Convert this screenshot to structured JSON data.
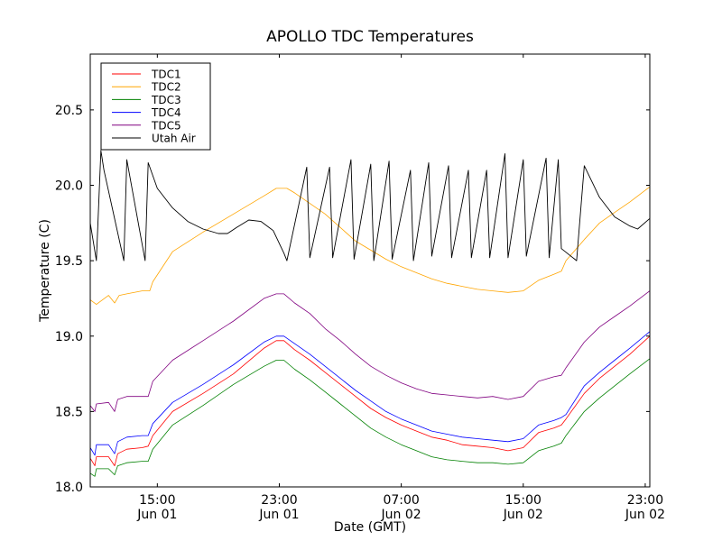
{
  "chart_data": {
    "type": "line",
    "title": "APOLLO TDC Temperatures",
    "xlabel": "Date (GMT)",
    "ylabel": "Temperature (C)",
    "x_unit": "hours since Jun 01 00:00 GMT",
    "xlim": [
      10.6,
      47.3
    ],
    "ylim": [
      18.0,
      20.87
    ],
    "grid": false,
    "legend_position": "top-left",
    "yticks": [
      {
        "value": 18.0,
        "label": "18.0"
      },
      {
        "value": 18.5,
        "label": "18.5"
      },
      {
        "value": 19.0,
        "label": "19.0"
      },
      {
        "value": 19.5,
        "label": "19.5"
      },
      {
        "value": 20.0,
        "label": "20.0"
      },
      {
        "value": 20.5,
        "label": "20.5"
      }
    ],
    "xticks": [
      {
        "value": 15,
        "time": "15:00",
        "date": "Jun 01"
      },
      {
        "value": 23,
        "time": "23:00",
        "date": "Jun 01"
      },
      {
        "value": 31,
        "time": "07:00",
        "date": "Jun 02"
      },
      {
        "value": 39,
        "time": "15:00",
        "date": "Jun 02"
      },
      {
        "value": 47,
        "time": "23:00",
        "date": "Jun 02"
      }
    ],
    "series": [
      {
        "name": "TDC1",
        "color": "#ff0000",
        "x": [
          10.6,
          10.9,
          11.0,
          11.8,
          12.2,
          12.4,
          13.0,
          14.0,
          14.4,
          14.7,
          16.0,
          18.0,
          20.0,
          22.0,
          22.8,
          23.3,
          24.0,
          25.0,
          26.0,
          27.0,
          28.0,
          29.0,
          30.0,
          31.0,
          32.0,
          33.0,
          34.0,
          35.0,
          36.0,
          37.0,
          38.0,
          39.0,
          40.0,
          41.0,
          41.5,
          41.8,
          43.0,
          44.0,
          45.0,
          46.0,
          47.3
        ],
        "y": [
          18.19,
          18.14,
          18.2,
          18.2,
          18.14,
          18.22,
          18.25,
          18.26,
          18.27,
          18.34,
          18.5,
          18.62,
          18.75,
          18.92,
          18.97,
          18.97,
          18.91,
          18.84,
          18.76,
          18.68,
          18.6,
          18.52,
          18.46,
          18.41,
          18.37,
          18.33,
          18.31,
          18.28,
          18.27,
          18.26,
          18.24,
          18.26,
          18.36,
          18.39,
          18.41,
          18.45,
          18.62,
          18.72,
          18.8,
          18.88,
          19.0
        ]
      },
      {
        "name": "TDC2",
        "color": "#ffa500",
        "x": [
          10.6,
          11.0,
          11.8,
          12.2,
          12.5,
          13.0,
          14.0,
          14.5,
          14.7,
          16.0,
          18.0,
          20.0,
          22.0,
          22.8,
          23.5,
          24.0,
          25.0,
          26.0,
          27.0,
          28.0,
          29.0,
          30.0,
          31.0,
          32.0,
          33.0,
          34.0,
          35.0,
          36.0,
          37.0,
          38.0,
          39.0,
          40.0,
          41.0,
          41.5,
          41.8,
          43.0,
          44.0,
          45.0,
          46.0,
          47.3
        ],
        "y": [
          19.24,
          19.21,
          19.27,
          19.22,
          19.27,
          19.28,
          19.3,
          19.3,
          19.36,
          19.56,
          19.69,
          19.81,
          19.93,
          19.98,
          19.98,
          19.95,
          19.88,
          19.81,
          19.72,
          19.63,
          19.57,
          19.51,
          19.46,
          19.42,
          19.38,
          19.35,
          19.33,
          19.31,
          19.3,
          19.29,
          19.3,
          19.37,
          19.41,
          19.43,
          19.5,
          19.64,
          19.75,
          19.82,
          19.89,
          19.99
        ]
      },
      {
        "name": "TDC3",
        "color": "#008000",
        "x": [
          10.6,
          10.9,
          11.0,
          11.8,
          12.2,
          12.4,
          13.0,
          14.0,
          14.4,
          14.7,
          16.0,
          18.0,
          20.0,
          22.0,
          22.8,
          23.3,
          24.0,
          25.0,
          26.0,
          27.0,
          28.0,
          29.0,
          30.0,
          31.0,
          32.0,
          33.0,
          34.0,
          35.0,
          36.0,
          37.0,
          38.0,
          39.0,
          40.0,
          41.0,
          41.5,
          41.8,
          43.0,
          44.0,
          45.0,
          46.0,
          47.3
        ],
        "y": [
          18.09,
          18.07,
          18.12,
          18.12,
          18.08,
          18.14,
          18.16,
          18.17,
          18.17,
          18.25,
          18.41,
          18.54,
          18.68,
          18.8,
          18.84,
          18.84,
          18.78,
          18.71,
          18.63,
          18.55,
          18.47,
          18.39,
          18.33,
          18.28,
          18.24,
          18.2,
          18.18,
          18.17,
          18.16,
          18.16,
          18.15,
          18.16,
          18.24,
          18.27,
          18.29,
          18.34,
          18.5,
          18.59,
          18.67,
          18.75,
          18.85
        ]
      },
      {
        "name": "TDC4",
        "color": "#0000ff",
        "x": [
          10.6,
          10.9,
          11.0,
          11.8,
          12.2,
          12.4,
          13.0,
          14.0,
          14.4,
          14.7,
          16.0,
          18.0,
          20.0,
          22.0,
          22.8,
          23.3,
          24.0,
          25.0,
          26.0,
          27.0,
          28.0,
          29.0,
          30.0,
          31.0,
          32.0,
          33.0,
          34.0,
          35.0,
          36.0,
          37.0,
          38.0,
          39.0,
          40.0,
          41.0,
          41.5,
          41.8,
          43.0,
          44.0,
          45.0,
          46.0,
          47.3
        ],
        "y": [
          18.26,
          18.21,
          18.28,
          18.28,
          18.22,
          18.3,
          18.33,
          18.34,
          18.34,
          18.42,
          18.56,
          18.68,
          18.81,
          18.96,
          19.0,
          19.0,
          18.95,
          18.88,
          18.8,
          18.72,
          18.64,
          18.57,
          18.5,
          18.45,
          18.41,
          18.37,
          18.35,
          18.33,
          18.32,
          18.31,
          18.3,
          18.32,
          18.41,
          18.44,
          18.46,
          18.48,
          18.67,
          18.76,
          18.84,
          18.92,
          19.03
        ]
      },
      {
        "name": "TDC5",
        "color": "#800080",
        "x": [
          10.6,
          10.9,
          11.0,
          11.8,
          12.2,
          12.4,
          13.0,
          14.0,
          14.4,
          14.7,
          16.0,
          18.0,
          20.0,
          22.0,
          22.8,
          23.3,
          24.0,
          25.0,
          26.0,
          27.0,
          28.0,
          29.0,
          30.0,
          31.0,
          32.0,
          33.0,
          34.0,
          35.0,
          36.0,
          37.0,
          38.0,
          39.0,
          40.0,
          41.0,
          41.5,
          41.8,
          43.0,
          44.0,
          45.0,
          46.0,
          47.3
        ],
        "y": [
          18.54,
          18.5,
          18.55,
          18.56,
          18.5,
          18.58,
          18.6,
          18.6,
          18.6,
          18.7,
          18.84,
          18.97,
          19.1,
          19.25,
          19.28,
          19.28,
          19.22,
          19.15,
          19.05,
          18.97,
          18.88,
          18.8,
          18.74,
          18.69,
          18.65,
          18.62,
          18.61,
          18.6,
          18.59,
          18.6,
          18.58,
          18.6,
          18.7,
          18.73,
          18.74,
          18.79,
          18.96,
          19.06,
          19.13,
          19.2,
          19.3
        ]
      },
      {
        "name": "Utah Air",
        "color": "#000000",
        "x": [
          10.6,
          11.0,
          11.3,
          11.5,
          12.8,
          13.0,
          14.2,
          14.4,
          15.0,
          16.0,
          17.0,
          18.0,
          19.0,
          19.6,
          20.2,
          21.0,
          21.8,
          22.6,
          23.3,
          23.5,
          24.8,
          25.0,
          26.3,
          26.5,
          27.7,
          27.9,
          29.0,
          29.2,
          30.2,
          30.4,
          31.6,
          31.8,
          32.8,
          33.0,
          34.1,
          34.3,
          35.4,
          35.6,
          36.6,
          36.8,
          37.8,
          38.0,
          39.0,
          39.2,
          40.5,
          40.7,
          41.3,
          41.5,
          42.5,
          43.0,
          44.0,
          45.0,
          46.0,
          46.5,
          47.3
        ],
        "y": [
          19.75,
          19.5,
          20.23,
          20.1,
          19.5,
          20.17,
          19.5,
          20.15,
          19.98,
          19.85,
          19.76,
          19.71,
          19.68,
          19.68,
          19.72,
          19.77,
          19.76,
          19.7,
          19.55,
          19.5,
          20.12,
          19.52,
          20.12,
          19.52,
          20.17,
          19.51,
          20.14,
          19.5,
          20.16,
          19.51,
          20.1,
          19.5,
          20.15,
          19.53,
          20.13,
          19.52,
          20.1,
          19.52,
          20.1,
          19.52,
          20.21,
          19.52,
          20.17,
          19.53,
          20.18,
          19.52,
          20.17,
          19.58,
          19.5,
          20.13,
          19.92,
          19.79,
          19.73,
          19.71,
          19.78
        ]
      }
    ]
  }
}
